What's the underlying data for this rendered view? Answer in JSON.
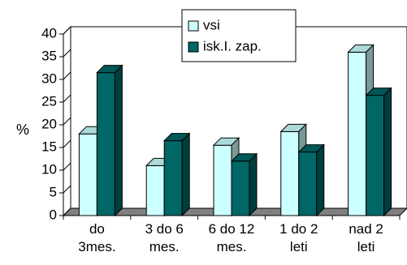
{
  "chart_data": {
    "type": "bar",
    "categories": [
      "do\n3mes.",
      "3 do 6\nmes.",
      "6 do 12\nmes.",
      "1 do 2\nleti",
      "nad 2\nleti"
    ],
    "series": [
      {
        "name": "vsi",
        "values": [
          18,
          11,
          15.5,
          18.5,
          36
        ],
        "color": "#ccffff"
      },
      {
        "name": "isk.I. zap.",
        "values": [
          31.5,
          16.5,
          12,
          14,
          26.5
        ],
        "color": "#006666"
      }
    ],
    "ylabel": "%",
    "ylim": [
      0,
      40
    ],
    "yticks": [
      "0",
      "5",
      "10",
      "15",
      "20",
      "25",
      "30",
      "35",
      "40"
    ],
    "grid": false,
    "legend_position": "top-center",
    "chart_style": "3d-clustered-column"
  }
}
